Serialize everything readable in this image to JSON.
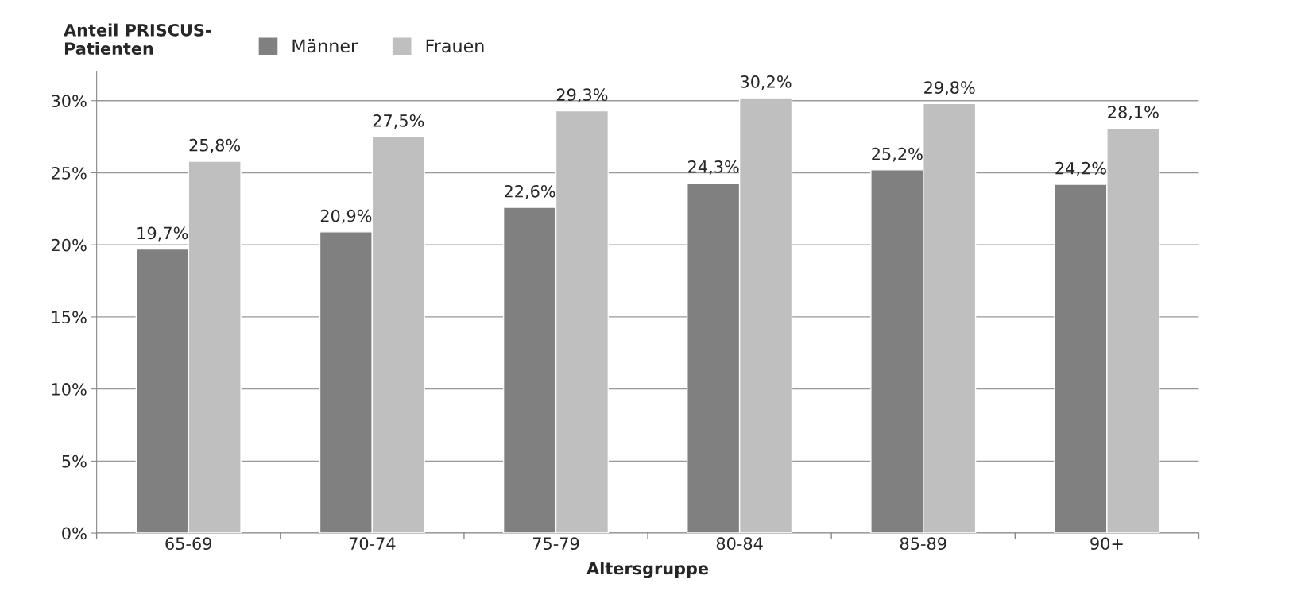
{
  "chart_data": {
    "type": "bar",
    "categories": [
      "65-69",
      "70-74",
      "75-79",
      "80-84",
      "85-89",
      "90+"
    ],
    "series": [
      {
        "name": "Männer",
        "color": "#808080",
        "values": [
          19.7,
          20.9,
          22.6,
          24.3,
          25.2,
          24.2
        ],
        "value_labels": [
          "19,7%",
          "20,9%",
          "22,6%",
          "24,3%",
          "25,2%",
          "24,2%"
        ]
      },
      {
        "name": "Frauen",
        "color": "#bfbfbf",
        "values": [
          25.8,
          27.5,
          29.3,
          30.2,
          29.8,
          28.1
        ],
        "value_labels": [
          "25,8%",
          "27,5%",
          "29,3%",
          "30,2%",
          "29,8%",
          "28,1%"
        ]
      }
    ],
    "ylabel": "Anteil PRISCUS-\nPatienten",
    "xlabel": "Altersgruppe",
    "ylim": [
      0,
      32
    ],
    "yticks": [
      {
        "value": 0,
        "label": "0%"
      },
      {
        "value": 5,
        "label": "5%"
      },
      {
        "value": 10,
        "label": "10%"
      },
      {
        "value": 15,
        "label": "15%"
      },
      {
        "value": 20,
        "label": "20%"
      },
      {
        "value": 25,
        "label": "25%"
      },
      {
        "value": 30,
        "label": "30%"
      }
    ],
    "grid": "y",
    "legend": "top"
  }
}
